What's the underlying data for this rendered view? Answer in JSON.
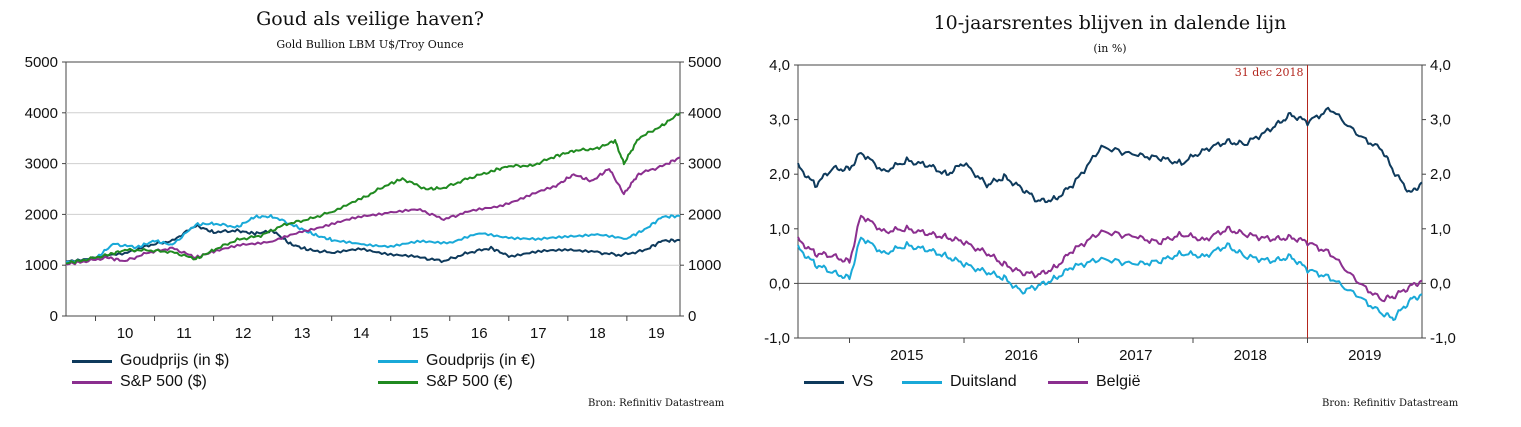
{
  "chart_data": [
    {
      "type": "line",
      "title": "Goud als veilige haven?",
      "subtitle": "Gold Bullion LBM U$/Troy Ounce",
      "x_ticks": [
        "10",
        "11",
        "12",
        "13",
        "14",
        "15",
        "16",
        "17",
        "18",
        "19"
      ],
      "xlim": [
        2009.5,
        2019.9
      ],
      "ylim": [
        0,
        5000
      ],
      "y_ticks": [
        "0",
        "1000",
        "2000",
        "3000",
        "4000",
        "5000"
      ],
      "right_axis": true,
      "grid": true,
      "legend_position": "bottom",
      "source": "Bron: Refinitiv Datastream",
      "series": [
        {
          "name": "Goudprijs (in $)",
          "color": "#0e3a5c",
          "x": [
            2009.5,
            2010.0,
            2010.5,
            2010.9,
            2011.3,
            2011.7,
            2012.0,
            2012.4,
            2012.7,
            2013.0,
            2013.3,
            2013.6,
            2014.0,
            2014.5,
            2015.0,
            2015.5,
            2015.9,
            2016.3,
            2016.7,
            2017.0,
            2017.5,
            2018.0,
            2018.5,
            2018.9,
            2019.3,
            2019.6,
            2019.9
          ],
          "y": [
            1080,
            1150,
            1230,
            1390,
            1480,
            1780,
            1650,
            1680,
            1620,
            1680,
            1420,
            1300,
            1250,
            1310,
            1220,
            1150,
            1080,
            1240,
            1340,
            1180,
            1260,
            1320,
            1250,
            1200,
            1290,
            1480,
            1490
          ]
        },
        {
          "name": "Goudprijs (in €)",
          "color": "#19a9d8",
          "x": [
            2009.5,
            2010.0,
            2010.3,
            2010.7,
            2011.0,
            2011.3,
            2011.7,
            2012.0,
            2012.4,
            2012.7,
            2013.0,
            2013.4,
            2013.7,
            2014.0,
            2014.5,
            2015.0,
            2015.5,
            2016.0,
            2016.5,
            2017.0,
            2017.5,
            2018.0,
            2018.5,
            2019.0,
            2019.3,
            2019.6,
            2019.9
          ],
          "y": [
            1070,
            1130,
            1420,
            1350,
            1480,
            1400,
            1800,
            1820,
            1750,
            1950,
            1960,
            1760,
            1600,
            1500,
            1400,
            1380,
            1460,
            1450,
            1620,
            1550,
            1500,
            1580,
            1590,
            1530,
            1700,
            1950,
            1970
          ]
        },
        {
          "name": "S&P 500 ($)",
          "color": "#8b2f8f",
          "x": [
            2009.5,
            2009.8,
            2010.2,
            2010.5,
            2010.9,
            2011.3,
            2011.7,
            2012.0,
            2012.5,
            2013.0,
            2013.5,
            2014.0,
            2014.5,
            2015.0,
            2015.5,
            2015.9,
            2016.3,
            2016.8,
            2017.3,
            2017.8,
            2018.1,
            2018.4,
            2018.7,
            2018.95,
            2019.2,
            2019.6,
            2019.9
          ],
          "y": [
            1020,
            1070,
            1150,
            1080,
            1250,
            1340,
            1150,
            1270,
            1400,
            1480,
            1650,
            1820,
            1950,
            2050,
            2090,
            1900,
            2050,
            2150,
            2350,
            2560,
            2790,
            2650,
            2900,
            2400,
            2800,
            2950,
            3120
          ]
        },
        {
          "name": "S&P 500 (€)",
          "color": "#208a20",
          "x": [
            2009.5,
            2009.8,
            2010.2,
            2010.5,
            2010.9,
            2011.3,
            2011.7,
            2012.0,
            2012.4,
            2012.8,
            2013.2,
            2013.6,
            2014.0,
            2014.5,
            2014.9,
            2015.2,
            2015.6,
            2015.9,
            2016.3,
            2016.7,
            2017.0,
            2017.4,
            2017.8,
            2018.1,
            2018.5,
            2018.8,
            2018.95,
            2019.2,
            2019.6,
            2019.9
          ],
          "y": [
            1040,
            1100,
            1200,
            1300,
            1290,
            1260,
            1120,
            1300,
            1500,
            1580,
            1800,
            1900,
            2050,
            2300,
            2560,
            2700,
            2500,
            2520,
            2700,
            2850,
            2950,
            2960,
            3150,
            3250,
            3300,
            3450,
            3000,
            3500,
            3750,
            4000
          ]
        }
      ]
    },
    {
      "type": "line",
      "title": "10-jaarsrentes blijven in dalende lijn",
      "subtitle": "(in %)",
      "x_ticks": [
        "2015",
        "2016",
        "2017",
        "2018",
        "2019"
      ],
      "xlim": [
        2014.55,
        2020.0
      ],
      "ylim": [
        -1.0,
        4.0
      ],
      "y_ticks": [
        "-1,0",
        "0,0",
        "1,0",
        "2,0",
        "3,0",
        "4,0"
      ],
      "right_axis": true,
      "grid": false,
      "legend_position": "bottom",
      "annotation": {
        "label": "31 dec 2018",
        "x": 2019.0
      },
      "source": "Bron: Refinitiv Datastream",
      "series": [
        {
          "name": "VS",
          "color": "#0e3a5c",
          "x": [
            2014.55,
            2014.7,
            2014.85,
            2015.0,
            2015.1,
            2015.3,
            2015.5,
            2015.7,
            2015.85,
            2016.0,
            2016.2,
            2016.35,
            2016.5,
            2016.65,
            2016.8,
            2016.95,
            2017.2,
            2017.5,
            2017.7,
            2017.9,
            2018.1,
            2018.3,
            2018.45,
            2018.7,
            2018.85,
            2019.0,
            2019.2,
            2019.45,
            2019.65,
            2019.75,
            2019.9,
            2020.0
          ],
          "y": [
            2.15,
            1.8,
            2.1,
            2.1,
            2.4,
            2.05,
            2.25,
            2.15,
            2.0,
            2.2,
            1.8,
            1.95,
            1.75,
            1.5,
            1.55,
            1.8,
            2.5,
            2.35,
            2.3,
            2.2,
            2.45,
            2.6,
            2.55,
            2.85,
            3.1,
            2.95,
            3.2,
            2.7,
            2.45,
            2.05,
            1.65,
            1.85
          ]
        },
        {
          "name": "Duitsland",
          "color": "#19a9d8",
          "x": [
            2014.55,
            2014.7,
            2014.85,
            2015.0,
            2015.1,
            2015.3,
            2015.5,
            2015.7,
            2015.85,
            2016.0,
            2016.2,
            2016.35,
            2016.5,
            2016.65,
            2016.8,
            2016.95,
            2017.2,
            2017.5,
            2017.7,
            2017.9,
            2018.1,
            2018.3,
            2018.45,
            2018.7,
            2018.85,
            2019.0,
            2019.2,
            2019.45,
            2019.65,
            2019.75,
            2019.9,
            2020.0
          ],
          "y": [
            0.65,
            0.35,
            0.2,
            0.1,
            0.85,
            0.55,
            0.7,
            0.6,
            0.5,
            0.35,
            0.2,
            0.1,
            -0.15,
            -0.05,
            0.1,
            0.3,
            0.45,
            0.35,
            0.4,
            0.55,
            0.5,
            0.7,
            0.5,
            0.4,
            0.5,
            0.25,
            0.1,
            -0.25,
            -0.55,
            -0.65,
            -0.3,
            -0.2
          ]
        },
        {
          "name": "België",
          "color": "#8b2f8f",
          "x": [
            2014.55,
            2014.7,
            2014.85,
            2015.0,
            2015.1,
            2015.3,
            2015.5,
            2015.7,
            2015.85,
            2016.0,
            2016.2,
            2016.35,
            2016.5,
            2016.65,
            2016.8,
            2016.95,
            2017.2,
            2017.5,
            2017.7,
            2017.9,
            2018.1,
            2018.3,
            2018.45,
            2018.7,
            2018.85,
            2019.0,
            2019.2,
            2019.45,
            2019.65,
            2019.75,
            2019.9,
            2020.0
          ],
          "y": [
            0.8,
            0.55,
            0.5,
            0.4,
            1.25,
            0.95,
            1.0,
            0.9,
            0.85,
            0.75,
            0.55,
            0.35,
            0.2,
            0.15,
            0.3,
            0.6,
            0.95,
            0.85,
            0.75,
            0.9,
            0.8,
            1.0,
            0.9,
            0.8,
            0.85,
            0.75,
            0.55,
            0.0,
            -0.3,
            -0.25,
            -0.05,
            0.05
          ]
        }
      ]
    }
  ]
}
